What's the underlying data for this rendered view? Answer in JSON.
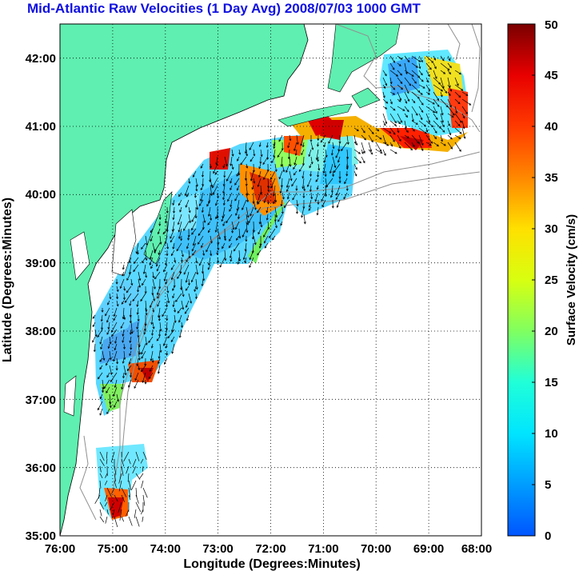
{
  "title": "Mid-Atlantic Raw Velocities (1 Day Avg) 2008/07/03 1000 GMT",
  "x_axis": {
    "label": "Longitude (Degrees:Minutes)",
    "ticks": [
      "76:00",
      "75:00",
      "74:00",
      "73:00",
      "72:00",
      "71:00",
      "70:00",
      "69:00",
      "68:00"
    ]
  },
  "y_axis": {
    "label": "Latitude (Degrees:Minutes)",
    "ticks": [
      "35:00",
      "36:00",
      "37:00",
      "38:00",
      "39:00",
      "40:00",
      "41:00",
      "42:00"
    ]
  },
  "colorbar": {
    "label": "Surface Velocity (cm/s)",
    "ticks": [
      "0",
      "5",
      "10",
      "15",
      "20",
      "25",
      "30",
      "35",
      "40",
      "45",
      "50"
    ],
    "range": [
      0,
      50
    ]
  },
  "colors": {
    "land": "#5fefb0",
    "title": "#1010e0",
    "grid": "#000000",
    "isobath": "#909090"
  },
  "map_data": {
    "lon_range": [
      -76,
      -68
    ],
    "lat_range": [
      35,
      42.5
    ],
    "grid": true,
    "velocity_hotspots": [
      {
        "lon": -71.0,
        "lat": 41.0,
        "speed": 48
      },
      {
        "lon": -69.3,
        "lat": 40.8,
        "speed": 45
      },
      {
        "lon": -68.5,
        "lat": 41.4,
        "speed": 42
      },
      {
        "lon": -72.1,
        "lat": 40.0,
        "speed": 40
      },
      {
        "lon": -73.2,
        "lat": 40.5,
        "speed": 45
      },
      {
        "lon": -74.7,
        "lat": 35.5,
        "speed": 48
      },
      {
        "lon": -74.5,
        "lat": 37.4,
        "speed": 40
      }
    ]
  }
}
